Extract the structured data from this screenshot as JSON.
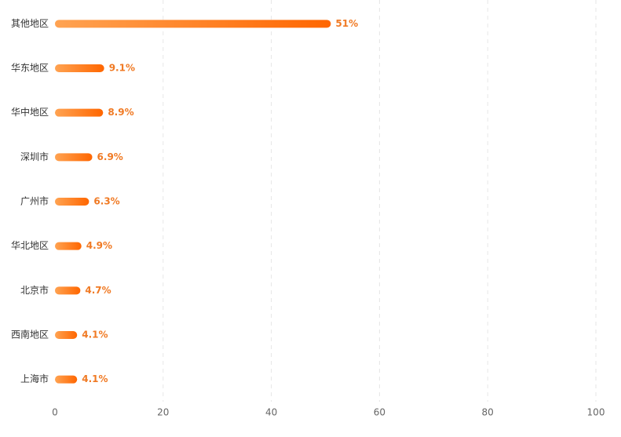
{
  "chart_data": {
    "type": "bar",
    "orientation": "horizontal",
    "categories": [
      "其他地区",
      "华东地区",
      "华中地区",
      "深圳市",
      "广州市",
      "华北地区",
      "北京市",
      "西南地区",
      "上海市"
    ],
    "values": [
      51,
      9.1,
      8.9,
      6.9,
      6.3,
      4.9,
      4.7,
      4.1,
      4.1
    ],
    "value_labels": [
      "51%",
      "9.1%",
      "8.9%",
      "6.9%",
      "6.3%",
      "4.9%",
      "4.7%",
      "4.1%",
      "4.1%"
    ],
    "colors": [
      "#ffa352",
      "#ff6600"
    ],
    "xlim": [
      0,
      100
    ],
    "xticks": [
      0,
      20,
      40,
      60,
      80,
      100
    ],
    "grid": true
  }
}
